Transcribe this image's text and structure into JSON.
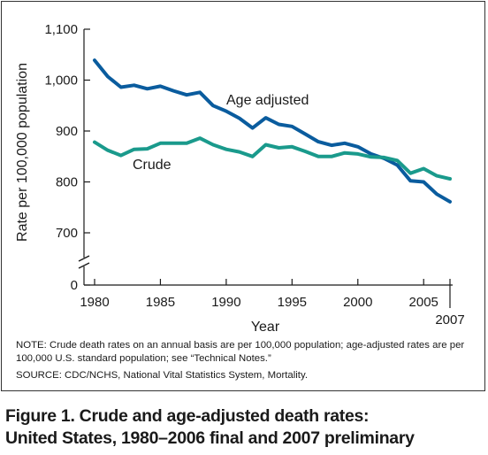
{
  "notes": {
    "note": "NOTE: Crude death rates on an annual basis are per 100,000 population; age-adjusted rates are per 100,000 U.S. standard population; see “Technical Notes.”",
    "source": "SOURCE: CDC/NCHS, National Vital Statistics System, Mortality."
  },
  "caption": {
    "line1": "Figure 1. Crude and age-adjusted death rates:",
    "line2": "United States, 1980–2006 final and 2007 preliminary"
  },
  "chart_data": {
    "type": "line",
    "title": "",
    "xlabel": "Year",
    "ylabel": "Rate per 100,000 population",
    "xlim": [
      1980,
      2007
    ],
    "ylim": [
      0,
      1100
    ],
    "axis_break": [
      0,
      650
    ],
    "grid": false,
    "x_ticks": [
      1980,
      1985,
      1990,
      1995,
      2000,
      2005,
      2007
    ],
    "x_tick_labels": [
      "1980",
      "1985",
      "1990",
      "1995",
      "2000",
      "2005",
      "2007"
    ],
    "y_ticks": [
      0,
      700,
      800,
      900,
      1000,
      1100
    ],
    "y_tick_labels": [
      "0",
      "700",
      "800",
      "900",
      "1,000",
      "1,100"
    ],
    "x": [
      1980,
      1981,
      1982,
      1983,
      1984,
      1985,
      1986,
      1987,
      1988,
      1989,
      1990,
      1991,
      1992,
      1993,
      1994,
      1995,
      1996,
      1997,
      1998,
      1999,
      2000,
      2001,
      2002,
      2003,
      2004,
      2005,
      2006,
      2007
    ],
    "series": [
      {
        "name": "Age adjusted",
        "color": "#0a5c9e",
        "values": [
          1039,
          1007,
          986,
          990,
          983,
          988,
          979,
          971,
          976,
          950,
          939,
          925,
          906,
          926,
          913,
          909,
          894,
          879,
          872,
          876,
          869,
          855,
          846,
          833,
          802,
          800,
          776,
          761
        ]
      },
      {
        "name": "Crude",
        "color": "#1a9a8c",
        "values": [
          878,
          862,
          852,
          864,
          865,
          876,
          876,
          876,
          886,
          873,
          864,
          859,
          850,
          873,
          867,
          869,
          860,
          850,
          850,
          857,
          855,
          849,
          848,
          842,
          817,
          826,
          812,
          806
        ]
      }
    ]
  }
}
